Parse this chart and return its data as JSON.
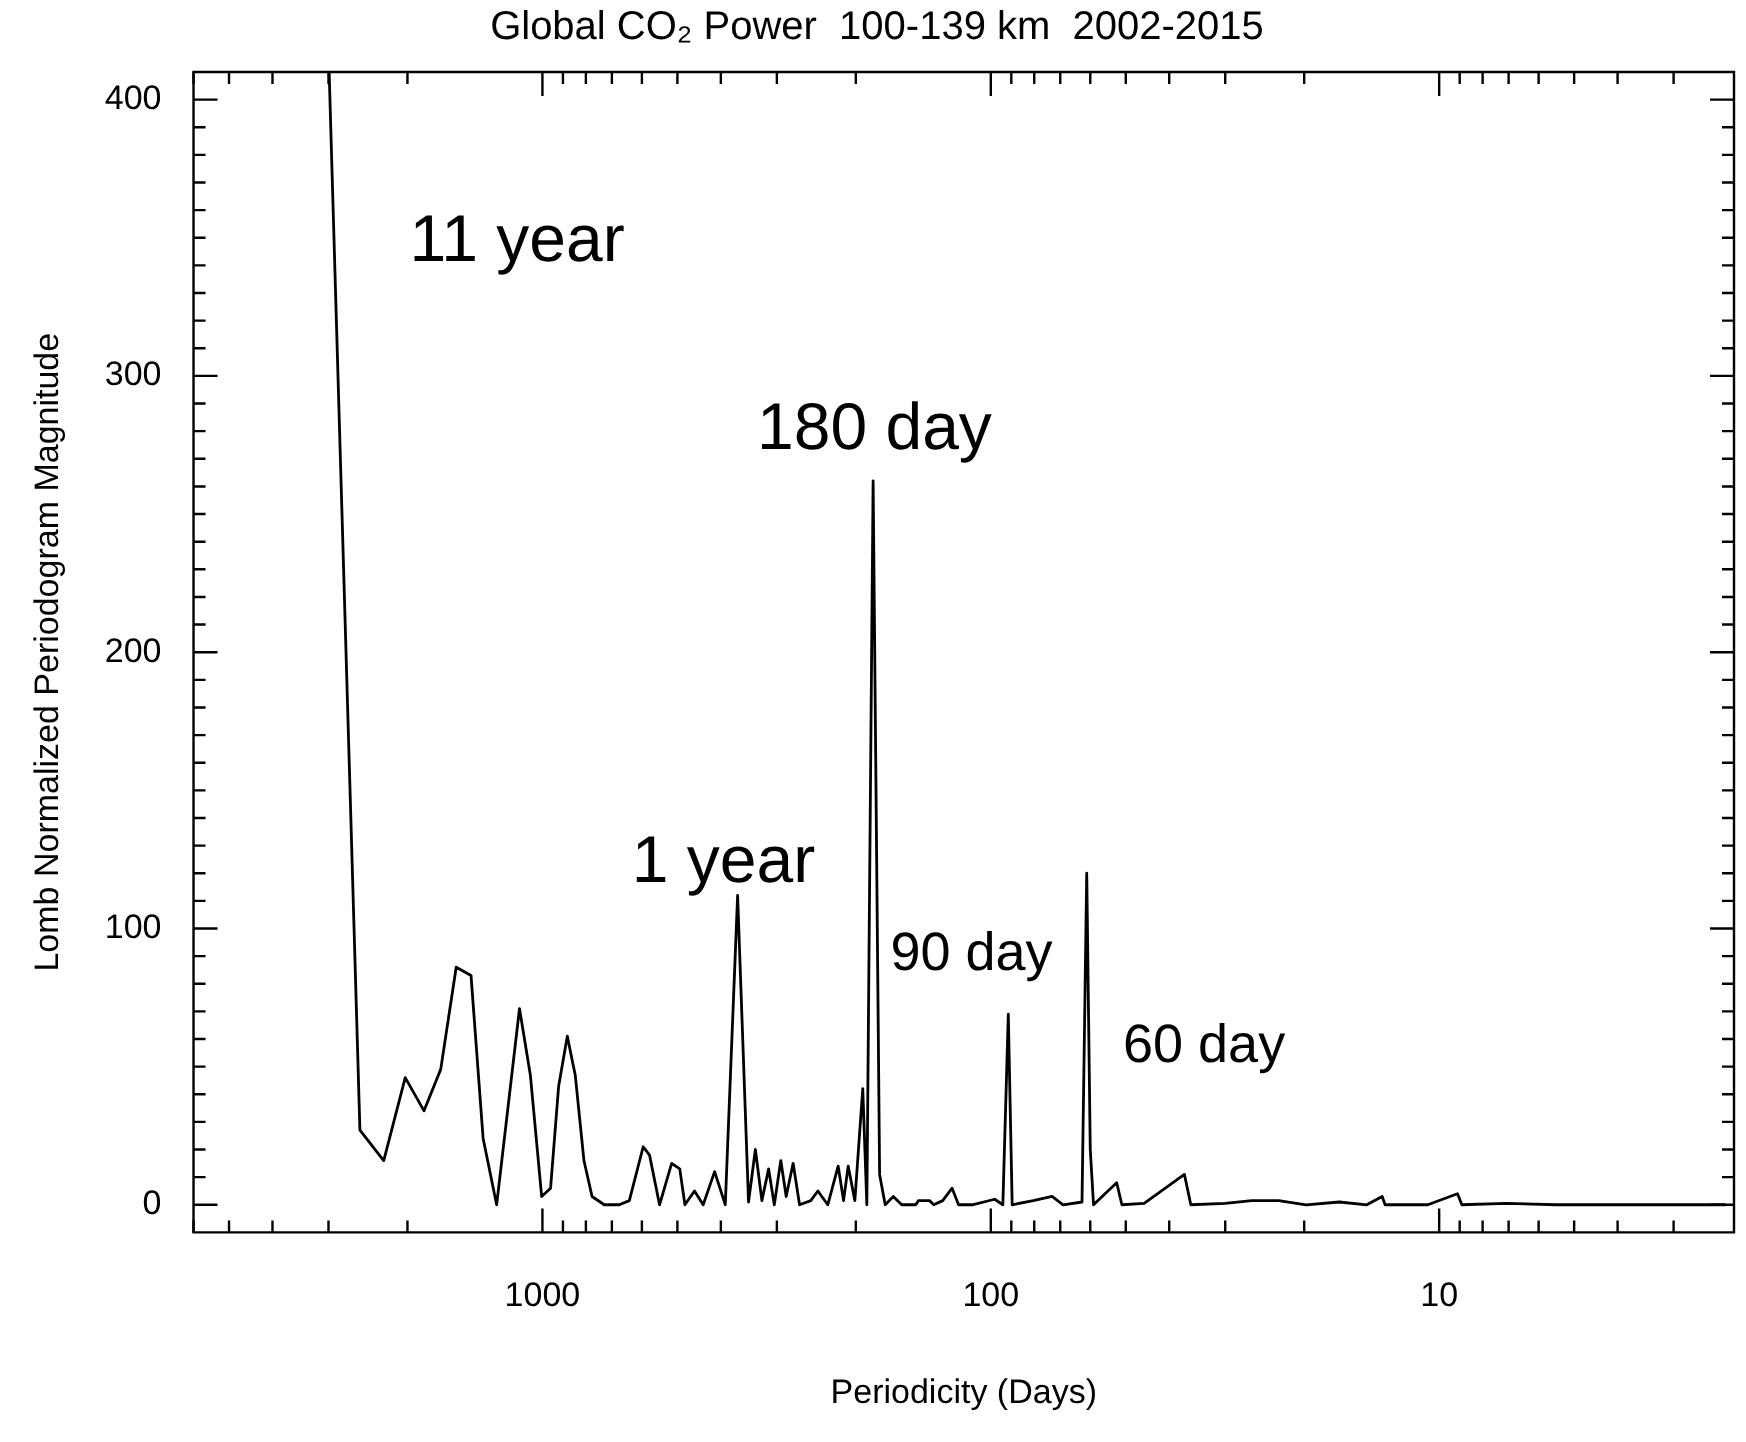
{
  "chart_data": {
    "type": "line",
    "title": "Global CO₂ Power  100-139 km  2002-2015",
    "xlabel": "Periodicity (Days)",
    "ylabel": "Lomb Normalized Periodogram Magnitude",
    "x": [
      2990,
      2553,
      2259,
      2023,
      1837,
      1686,
      1557,
      1443,
      1356,
      1265,
      1125,
      1064,
      1004,
      959,
      920,
      880,
      845,
      808,
      775,
      728,
      674,
      640,
      596,
      577,
      548,
      515,
      494,
      481,
      458,
      438,
      413,
      391,
      367,
      347,
      335,
      324,
      313,
      304,
      294,
      286,
      276,
      267,
      252,
      243,
      231,
      219,
      213,
      208,
      201,
      193,
      189,
      183,
      177,
      172,
      165,
      158,
      147,
      145,
      137,
      134,
      128,
      122,
      118,
      110,
      98,
      94,
      91.4,
      89.6,
      80.4,
      73,
      69,
      62.6,
      61.1,
      60.0,
      59,
      52.4,
      51.0,
      45.5,
      37.0,
      35.8,
      30.0,
      26.2,
      22.8,
      19.8,
      16.7,
      14.5,
      13.4,
      13.2,
      10.6,
      9.1,
      8.9,
      7.1,
      5.5,
      3.9,
      2.3
    ],
    "series": [
      {
        "color": "#000000",
        "values": [
          410,
          27,
          16,
          46,
          34,
          49,
          86,
          83,
          24,
          0,
          71,
          47,
          3,
          6,
          43,
          61,
          47,
          16,
          3,
          0,
          0,
          1.5,
          21,
          18,
          0,
          15,
          13,
          0,
          5,
          0,
          12,
          0,
          112,
          1,
          20,
          1.5,
          13,
          0,
          16,
          3,
          15,
          0,
          1.5,
          5,
          0,
          14,
          1.5,
          14,
          1.5,
          42,
          0,
          262,
          11,
          0,
          3,
          0,
          0,
          1.5,
          1.5,
          0,
          1.5,
          6,
          0,
          0,
          2,
          0,
          69,
          0,
          1.5,
          3,
          0,
          1,
          120,
          20,
          0,
          8,
          0,
          0.5,
          11,
          0,
          0.5,
          1.5,
          1.5,
          0,
          1,
          0,
          3,
          0,
          0,
          4,
          0,
          0.5,
          0,
          0,
          0
        ]
      }
    ],
    "log": "x",
    "marker": "none",
    "line_style": "solid",
    "xlim": [
      6000,
      2.2
    ],
    "xticks": [
      {
        "value": 6000,
        "label": null
      },
      {
        "value": 5000,
        "label": null
      },
      {
        "value": 4000,
        "label": null
      },
      {
        "value": 3000,
        "label": null
      },
      {
        "value": 2000,
        "label": null
      },
      1000,
      {
        "value": 900,
        "label": null
      },
      {
        "value": 800,
        "label": null
      },
      {
        "value": 700,
        "label": null
      },
      {
        "value": 600,
        "label": null
      },
      {
        "value": 500,
        "label": null
      },
      {
        "value": 400,
        "label": null
      },
      {
        "value": 300,
        "label": null
      },
      {
        "value": 200,
        "label": null
      },
      100,
      {
        "value": 90,
        "label": null
      },
      {
        "value": 80,
        "label": null
      },
      {
        "value": 70,
        "label": null
      },
      {
        "value": 60,
        "label": null
      },
      {
        "value": 50,
        "label": null
      },
      {
        "value": 40,
        "label": null
      },
      {
        "value": 30,
        "label": null
      },
      {
        "value": 20,
        "label": null
      },
      10,
      {
        "value": 9,
        "label": null
      },
      {
        "value": 8,
        "label": null
      },
      {
        "value": 7,
        "label": null
      },
      {
        "value": 6,
        "label": null
      },
      {
        "value": 5,
        "label": null
      },
      {
        "value": 4,
        "label": null
      },
      {
        "value": 3,
        "label": null
      }
    ],
    "ylim": [
      -10,
      410
    ],
    "yticks": [
      0,
      {
        "value": 10,
        "label": null
      },
      {
        "value": 20,
        "label": null
      },
      {
        "value": 30,
        "label": null
      },
      {
        "value": 40,
        "label": null
      },
      {
        "value": 50,
        "label": null
      },
      {
        "value": 60,
        "label": null
      },
      {
        "value": 70,
        "label": null
      },
      {
        "value": 80,
        "label": null
      },
      {
        "value": 90,
        "label": null
      },
      100,
      {
        "value": 110,
        "label": null
      },
      {
        "value": 120,
        "label": null
      },
      {
        "value": 130,
        "label": null
      },
      {
        "value": 140,
        "label": null
      },
      {
        "value": 150,
        "label": null
      },
      {
        "value": 160,
        "label": null
      },
      {
        "value": 170,
        "label": null
      },
      {
        "value": 180,
        "label": null
      },
      {
        "value": 190,
        "label": null
      },
      200,
      {
        "value": 210,
        "label": null
      },
      {
        "value": 220,
        "label": null
      },
      {
        "value": 230,
        "label": null
      },
      {
        "value": 240,
        "label": null
      },
      {
        "value": 250,
        "label": null
      },
      {
        "value": 260,
        "label": null
      },
      {
        "value": 270,
        "label": null
      },
      {
        "value": 280,
        "label": null
      },
      {
        "value": 290,
        "label": null
      },
      300,
      {
        "value": 310,
        "label": null
      },
      {
        "value": 320,
        "label": null
      },
      {
        "value": 330,
        "label": null
      },
      {
        "value": 340,
        "label": null
      },
      {
        "value": 350,
        "label": null
      },
      {
        "value": 360,
        "label": null
      },
      {
        "value": 370,
        "label": null
      },
      {
        "value": 380,
        "label": null
      },
      {
        "value": 390,
        "label": null
      },
      400
    ],
    "annotations": [
      "11 year",
      "180 day",
      "1 year",
      "90 day",
      "60 day"
    ]
  }
}
